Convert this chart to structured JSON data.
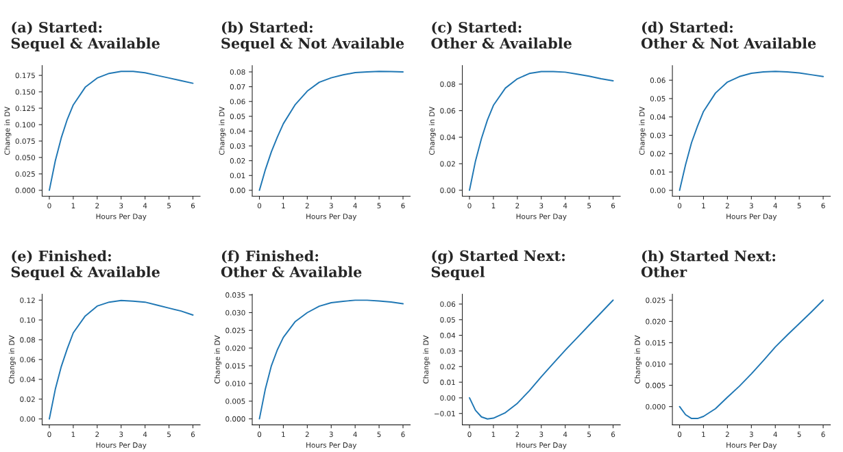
{
  "chart_data": [
    {
      "type": "line",
      "title": "(a) Started:\nSequel & Available",
      "xlabel": "Hours Per Day",
      "ylabel": "Change in DV",
      "x": [
        0,
        0.25,
        0.5,
        0.75,
        1,
        1.5,
        2,
        2.5,
        3,
        3.5,
        4,
        4.5,
        5,
        5.5,
        6
      ],
      "series": [
        {
          "color": "#1f77b4",
          "values": [
            0,
            0.045,
            0.08,
            0.108,
            0.13,
            0.157,
            0.171,
            0.178,
            0.181,
            0.181,
            0.179,
            0.175,
            0.171,
            0.167,
            0.163
          ]
        }
      ],
      "xlim": [
        -0.3,
        6.3
      ],
      "ylim": [
        -0.009,
        0.19
      ],
      "xticks": [
        0,
        1,
        2,
        3,
        4,
        5,
        6
      ],
      "yticks": [
        {
          "value": 0,
          "label": "0.000"
        },
        {
          "value": 0.025,
          "label": "0.025"
        },
        {
          "value": 0.05,
          "label": "0.050"
        },
        {
          "value": 0.075,
          "label": "0.075"
        },
        {
          "value": 0.1,
          "label": "0.100"
        },
        {
          "value": 0.125,
          "label": "0.125"
        },
        {
          "value": 0.15,
          "label": "0.150"
        },
        {
          "value": 0.175,
          "label": "0.175"
        }
      ],
      "grid": false,
      "legend": false
    },
    {
      "type": "line",
      "title": "(b) Started:\nSequel & Not Available",
      "xlabel": "Hours Per Day",
      "ylabel": "Change in DV",
      "x": [
        0,
        0.25,
        0.5,
        0.75,
        1,
        1.5,
        2,
        2.5,
        3,
        3.5,
        4,
        4.5,
        5,
        5.5,
        6
      ],
      "series": [
        {
          "color": "#1f77b4",
          "values": [
            0,
            0.014,
            0.026,
            0.036,
            0.045,
            0.058,
            0.067,
            0.073,
            0.076,
            0.078,
            0.0795,
            0.08,
            0.0803,
            0.0802,
            0.08
          ]
        }
      ],
      "xlim": [
        -0.3,
        6.3
      ],
      "ylim": [
        -0.004,
        0.0843
      ],
      "xticks": [
        0,
        1,
        2,
        3,
        4,
        5,
        6
      ],
      "yticks": [
        {
          "value": 0,
          "label": "0.00"
        },
        {
          "value": 0.01,
          "label": "0.01"
        },
        {
          "value": 0.02,
          "label": "0.02"
        },
        {
          "value": 0.03,
          "label": "0.03"
        },
        {
          "value": 0.04,
          "label": "0.04"
        },
        {
          "value": 0.05,
          "label": "0.05"
        },
        {
          "value": 0.06,
          "label": "0.06"
        },
        {
          "value": 0.07,
          "label": "0.07"
        },
        {
          "value": 0.08,
          "label": "0.08"
        }
      ],
      "grid": false,
      "legend": false
    },
    {
      "type": "line",
      "title": "(c) Started:\nOther & Available",
      "xlabel": "Hours Per Day",
      "ylabel": "Change in DV",
      "x": [
        0,
        0.25,
        0.5,
        0.75,
        1,
        1.5,
        2,
        2.5,
        3,
        3.5,
        4,
        4.5,
        5,
        5.5,
        6
      ],
      "series": [
        {
          "color": "#1f77b4",
          "values": [
            0,
            0.022,
            0.039,
            0.053,
            0.064,
            0.077,
            0.084,
            0.088,
            0.0895,
            0.0895,
            0.089,
            0.0875,
            0.086,
            0.084,
            0.0825
          ]
        }
      ],
      "xlim": [
        -0.3,
        6.3
      ],
      "ylim": [
        -0.0045,
        0.094
      ],
      "xticks": [
        0,
        1,
        2,
        3,
        4,
        5,
        6
      ],
      "yticks": [
        {
          "value": 0,
          "label": "0.00"
        },
        {
          "value": 0.02,
          "label": "0.02"
        },
        {
          "value": 0.04,
          "label": "0.04"
        },
        {
          "value": 0.06,
          "label": "0.06"
        },
        {
          "value": 0.08,
          "label": "0.08"
        }
      ],
      "grid": false,
      "legend": false
    },
    {
      "type": "line",
      "title": "(d) Started:\nOther & Not Available",
      "xlabel": "Hours Per Day",
      "ylabel": "Change in DV",
      "x": [
        0,
        0.25,
        0.5,
        0.75,
        1,
        1.5,
        2,
        2.5,
        3,
        3.5,
        4,
        4.5,
        5,
        5.5,
        6
      ],
      "series": [
        {
          "color": "#1f77b4",
          "values": [
            0,
            0.014,
            0.026,
            0.035,
            0.043,
            0.053,
            0.059,
            0.062,
            0.0638,
            0.0645,
            0.0648,
            0.0645,
            0.064,
            0.063,
            0.062
          ]
        }
      ],
      "xlim": [
        -0.3,
        6.3
      ],
      "ylim": [
        -0.0032,
        0.068
      ],
      "xticks": [
        0,
        1,
        2,
        3,
        4,
        5,
        6
      ],
      "yticks": [
        {
          "value": 0,
          "label": "0.00"
        },
        {
          "value": 0.01,
          "label": "0.01"
        },
        {
          "value": 0.02,
          "label": "0.02"
        },
        {
          "value": 0.03,
          "label": "0.03"
        },
        {
          "value": 0.04,
          "label": "0.04"
        },
        {
          "value": 0.05,
          "label": "0.05"
        },
        {
          "value": 0.06,
          "label": "0.06"
        }
      ],
      "grid": false,
      "legend": false
    },
    {
      "type": "line",
      "title": "(e) Finished:\nSequel & Available",
      "xlabel": "Hours Per Day",
      "ylabel": "Change in DV",
      "x": [
        0,
        0.25,
        0.5,
        0.75,
        1,
        1.5,
        2,
        2.5,
        3,
        3.5,
        4,
        4.5,
        5,
        5.5,
        6
      ],
      "series": [
        {
          "color": "#1f77b4",
          "values": [
            0,
            0.03,
            0.053,
            0.071,
            0.087,
            0.104,
            0.114,
            0.118,
            0.1197,
            0.119,
            0.118,
            0.115,
            0.112,
            0.109,
            0.105
          ]
        }
      ],
      "xlim": [
        -0.3,
        6.3
      ],
      "ylim": [
        -0.006,
        0.126
      ],
      "xticks": [
        0,
        1,
        2,
        3,
        4,
        5,
        6
      ],
      "yticks": [
        {
          "value": 0,
          "label": "0.00"
        },
        {
          "value": 0.02,
          "label": "0.02"
        },
        {
          "value": 0.04,
          "label": "0.04"
        },
        {
          "value": 0.06,
          "label": "0.06"
        },
        {
          "value": 0.08,
          "label": "0.08"
        },
        {
          "value": 0.1,
          "label": "0.10"
        },
        {
          "value": 0.12,
          "label": "0.12"
        }
      ],
      "grid": false,
      "legend": false
    },
    {
      "type": "line",
      "title": "(f) Finished:\nOther & Available",
      "xlabel": "Hours Per Day",
      "ylabel": "Change in DV",
      "x": [
        0,
        0.25,
        0.5,
        0.75,
        1,
        1.5,
        2,
        2.5,
        3,
        3.5,
        4,
        4.5,
        5,
        5.5,
        6
      ],
      "series": [
        {
          "color": "#1f77b4",
          "values": [
            0,
            0.0085,
            0.015,
            0.0195,
            0.023,
            0.0275,
            0.03,
            0.0318,
            0.0328,
            0.0332,
            0.0335,
            0.0335,
            0.0333,
            0.033,
            0.0325
          ]
        }
      ],
      "xlim": [
        -0.3,
        6.3
      ],
      "ylim": [
        -0.0017,
        0.0352
      ],
      "xticks": [
        0,
        1,
        2,
        3,
        4,
        5,
        6
      ],
      "yticks": [
        {
          "value": 0,
          "label": "0.000"
        },
        {
          "value": 0.005,
          "label": "0.005"
        },
        {
          "value": 0.01,
          "label": "0.010"
        },
        {
          "value": 0.015,
          "label": "0.015"
        },
        {
          "value": 0.02,
          "label": "0.020"
        },
        {
          "value": 0.025,
          "label": "0.025"
        },
        {
          "value": 0.03,
          "label": "0.030"
        },
        {
          "value": 0.035,
          "label": "0.035"
        }
      ],
      "grid": false,
      "legend": false
    },
    {
      "type": "line",
      "title": "(g) Started Next:\nSequel",
      "xlabel": "Hours Per Day",
      "ylabel": "Change in DV",
      "x": [
        0,
        0.25,
        0.5,
        0.75,
        1,
        1.5,
        2,
        2.5,
        3,
        3.5,
        4,
        4.5,
        5,
        5.5,
        6
      ],
      "series": [
        {
          "color": "#1f77b4",
          "values": [
            0,
            -0.008,
            -0.0122,
            -0.0135,
            -0.013,
            -0.0095,
            -0.0035,
            0.0045,
            0.0135,
            0.022,
            0.0305,
            0.0385,
            0.0465,
            0.0545,
            0.0625
          ]
        }
      ],
      "xlim": [
        -0.3,
        6.3
      ],
      "ylim": [
        -0.0173,
        0.0663
      ],
      "xticks": [
        0,
        1,
        2,
        3,
        4,
        5,
        6
      ],
      "yticks": [
        {
          "value": -0.01,
          "label": "−0.01"
        },
        {
          "value": 0,
          "label": "0.00"
        },
        {
          "value": 0.01,
          "label": "0.01"
        },
        {
          "value": 0.02,
          "label": "0.02"
        },
        {
          "value": 0.03,
          "label": "0.03"
        },
        {
          "value": 0.04,
          "label": "0.04"
        },
        {
          "value": 0.05,
          "label": "0.05"
        },
        {
          "value": 0.06,
          "label": "0.06"
        }
      ],
      "grid": false,
      "legend": false
    },
    {
      "type": "line",
      "title": "(h) Started Next:\nOther",
      "xlabel": "Hours Per Day",
      "ylabel": "Change in DV",
      "x": [
        0,
        0.25,
        0.5,
        0.75,
        1,
        1.5,
        2,
        2.5,
        3,
        3.5,
        4,
        4.5,
        5,
        5.5,
        6
      ],
      "series": [
        {
          "color": "#1f77b4",
          "values": [
            0,
            -0.0019,
            -0.0028,
            -0.0028,
            -0.0023,
            -0.0005,
            0.0022,
            0.0048,
            0.0077,
            0.0108,
            0.014,
            0.0168,
            0.0195,
            0.0222,
            0.025
          ]
        }
      ],
      "xlim": [
        -0.3,
        6.3
      ],
      "ylim": [
        -0.0043,
        0.0264
      ],
      "xticks": [
        0,
        1,
        2,
        3,
        4,
        5,
        6
      ],
      "yticks": [
        {
          "value": 0,
          "label": "0.000"
        },
        {
          "value": 0.005,
          "label": "0.005"
        },
        {
          "value": 0.01,
          "label": "0.010"
        },
        {
          "value": 0.015,
          "label": "0.015"
        },
        {
          "value": 0.02,
          "label": "0.020"
        },
        {
          "value": 0.025,
          "label": "0.025"
        }
      ],
      "grid": false,
      "legend": false
    }
  ]
}
